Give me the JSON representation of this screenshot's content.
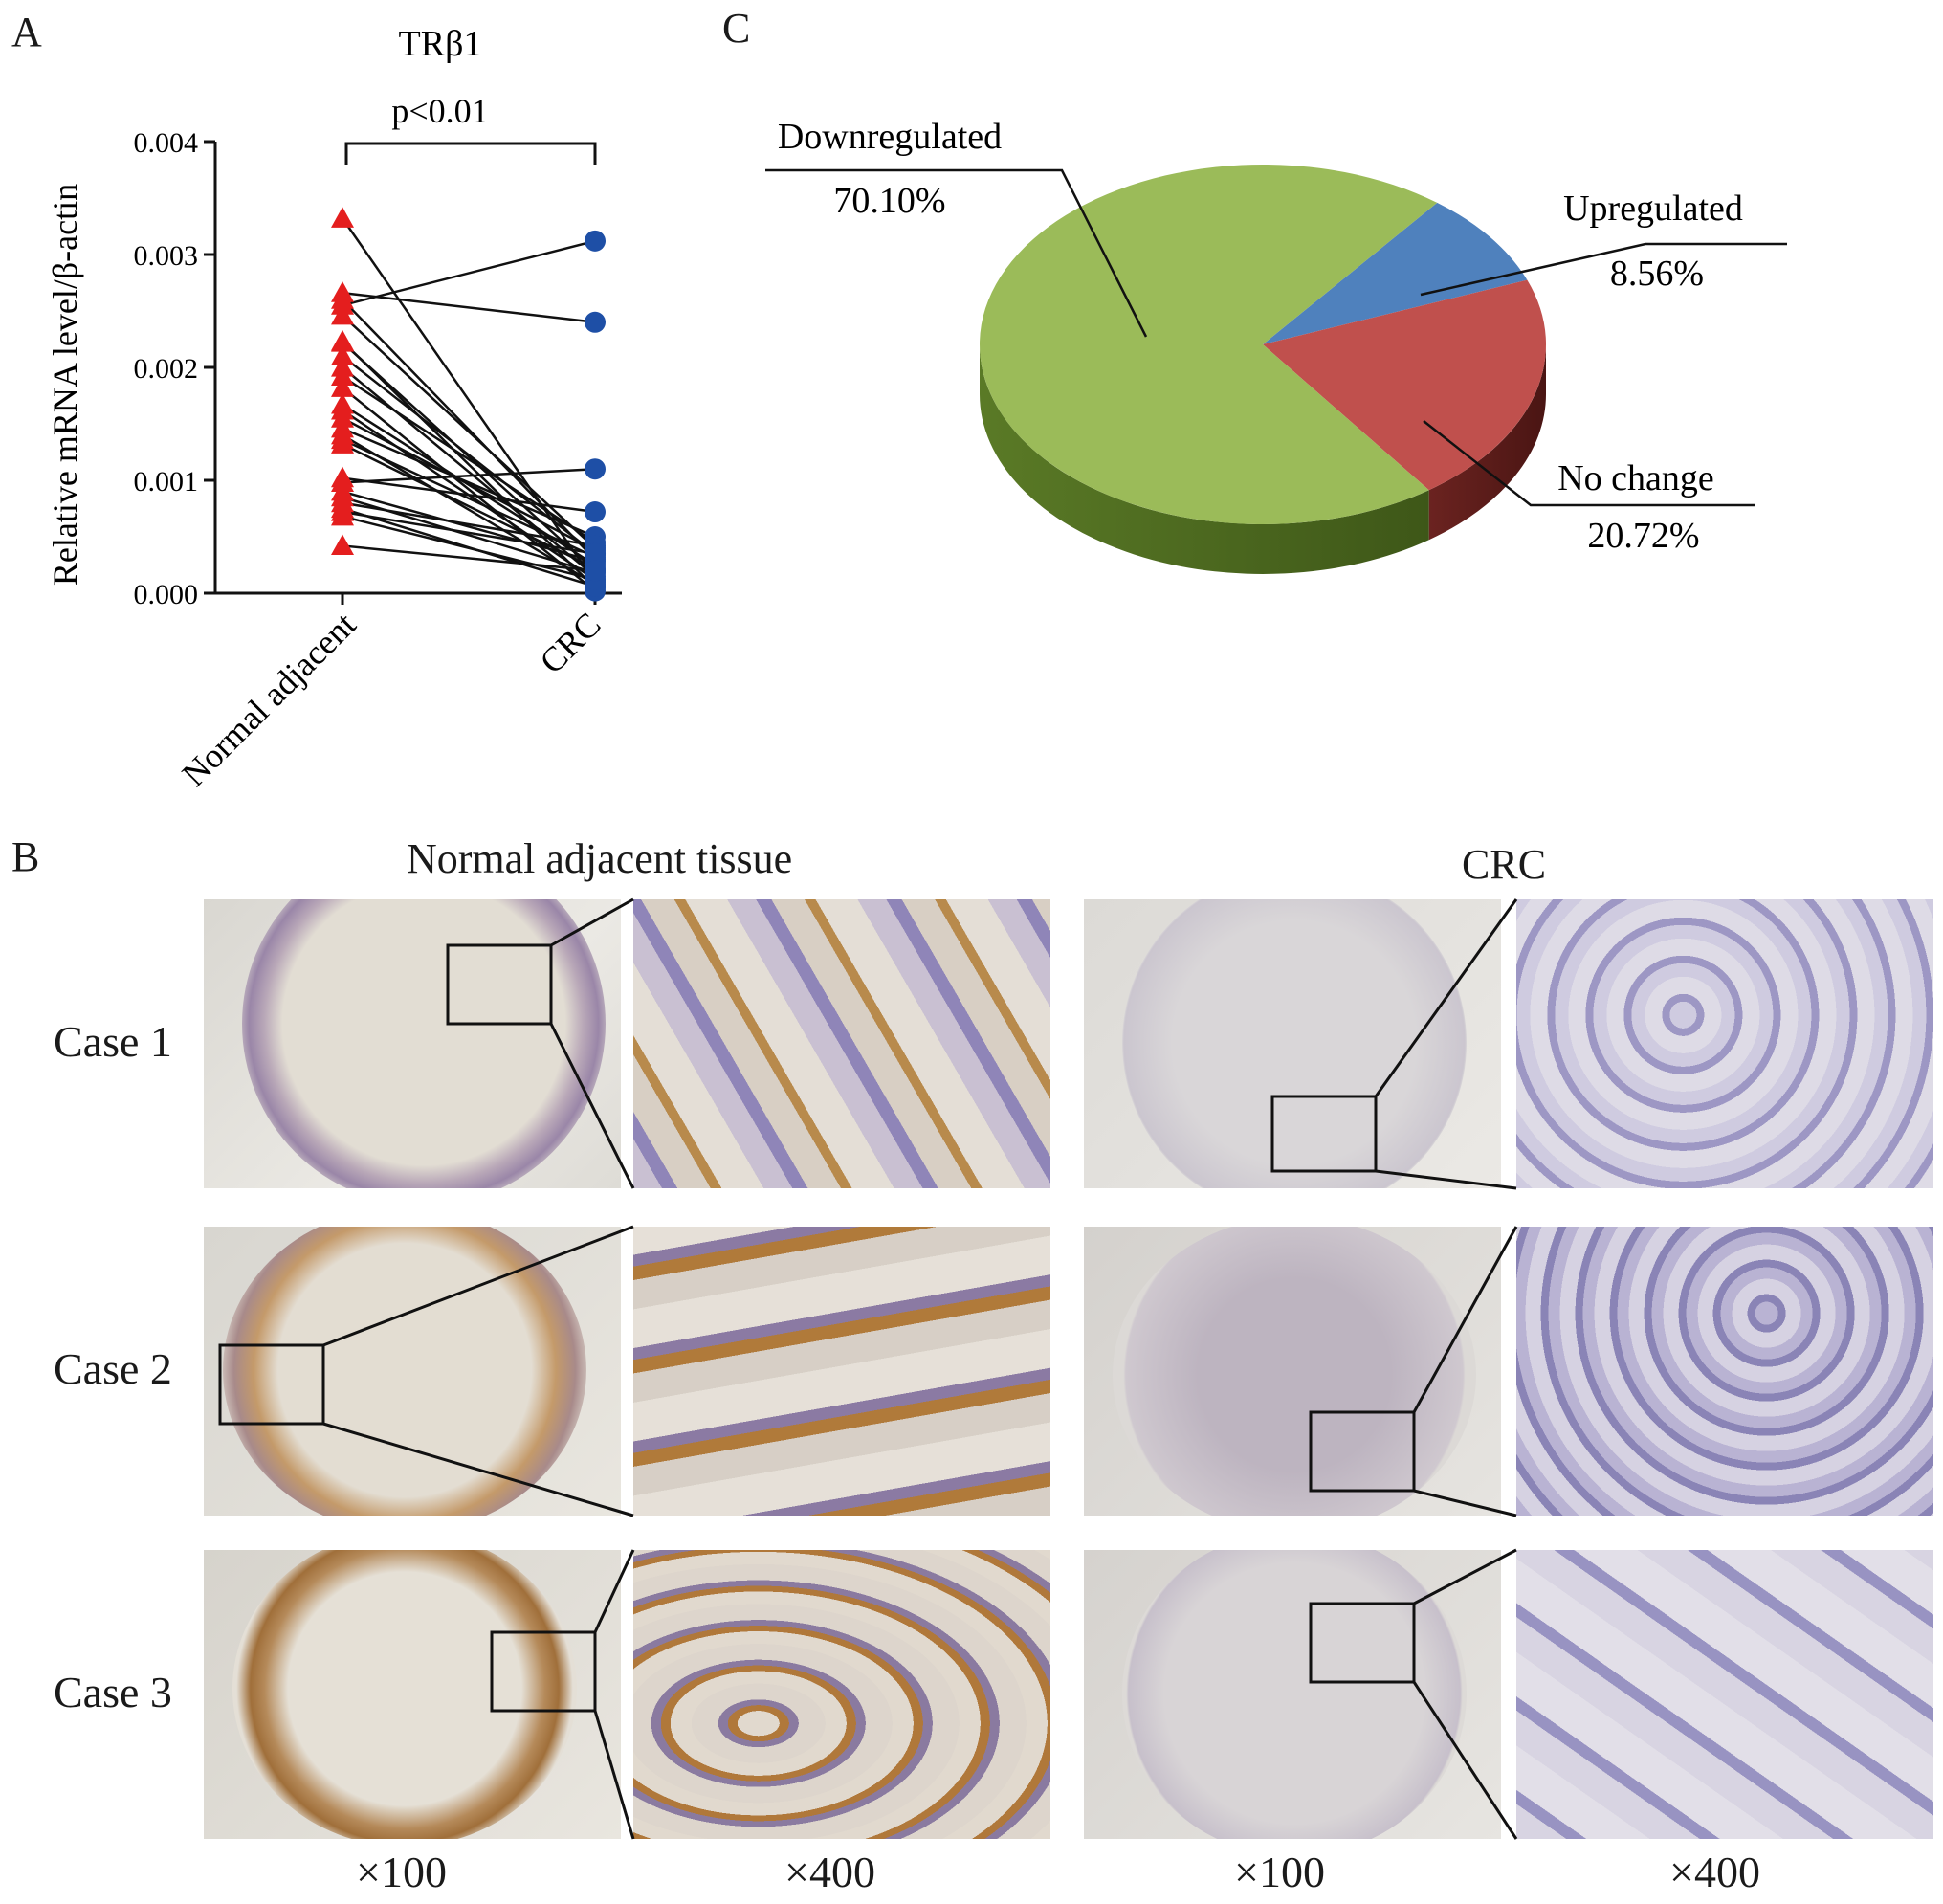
{
  "panels": {
    "a": "A",
    "b": "B",
    "c": "C"
  },
  "chart_data": [
    {
      "type": "scatter",
      "title": "TRβ1",
      "annotation": "p<0.01",
      "xlabel": "",
      "ylabel": "Relative mRNA level/β-actin",
      "categories": [
        "Normal adjacent",
        "CRC"
      ],
      "ylim": [
        0,
        0.004
      ],
      "yticks": [
        "0.000",
        "0.001",
        "0.002",
        "0.003",
        "0.004"
      ],
      "series": [
        {
          "name": "Normal adjacent",
          "color": "#e41e1e",
          "marker": "triangle",
          "values": [
            0.00332,
            0.00266,
            0.0026,
            0.00255,
            0.00246,
            0.00223,
            0.00222,
            0.0021,
            0.002,
            0.00192,
            0.00182,
            0.00167,
            0.00162,
            0.00155,
            0.00146,
            0.0014,
            0.00136,
            0.00132,
            0.00102,
            0.00098,
            0.0009,
            0.00085,
            0.0008,
            0.00075,
            0.00072,
            0.00068,
            0.00042
          ]
        },
        {
          "name": "CRC",
          "color": "#1e4fa6",
          "marker": "circle",
          "values": [
            0.0001,
            0.0024,
            0.0003,
            0.00312,
            0.0004,
            5e-05,
            0.0002,
            0.00035,
            0.00015,
            0.00045,
            2e-05,
            0.00025,
            0.00012,
            0.00038,
            0.0005,
            8e-05,
            0.00032,
            0.00022,
            0.00072,
            0.0011,
            0.00028,
            0.00018,
            0.00042,
            6e-05,
            0.00035,
            0.00012,
            0.0002
          ]
        }
      ]
    },
    {
      "type": "pie",
      "style": "3d",
      "slices": [
        {
          "label": "Downregulated",
          "value": 70.1,
          "text": "70.10%",
          "color": "#9bbb59"
        },
        {
          "label": "Upregulated",
          "value": 8.56,
          "text": "8.56%",
          "color": "#4f81bd"
        },
        {
          "label": "No change",
          "value": 20.72,
          "text": "20.72%",
          "color": "#c0504d"
        }
      ]
    }
  ],
  "ihc": {
    "group_labels": {
      "normal": "Normal adjacent tissue",
      "crc": "CRC"
    },
    "cases": [
      "Case 1",
      "Case 2",
      "Case 3"
    ],
    "magnifications": [
      "×100",
      "×400",
      "×100",
      "×400"
    ],
    "colors": {
      "normal_stain": "#b07a3a",
      "crc_stain": "#8a86b8",
      "background": "#e7e5e1"
    }
  }
}
